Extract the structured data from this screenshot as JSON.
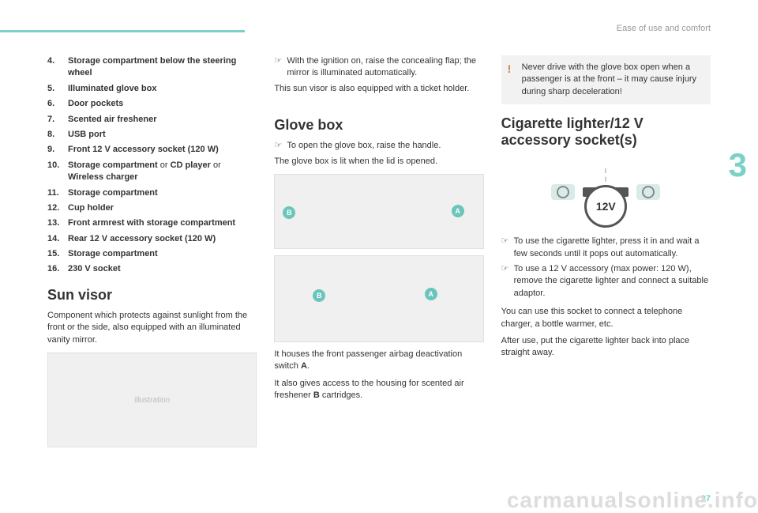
{
  "header": {
    "section": "Ease of use and comfort"
  },
  "chapter_number": "3",
  "page_number": "97",
  "watermark": "carmanualsonline.info",
  "col1": {
    "list": [
      {
        "n": "4.",
        "text": "Storage compartment below the steering wheel"
      },
      {
        "n": "5.",
        "text": "Illuminated glove box"
      },
      {
        "n": "6.",
        "text": "Door pockets"
      },
      {
        "n": "7.",
        "text": "Scented air freshener"
      },
      {
        "n": "8.",
        "text": "USB port"
      },
      {
        "n": "9.",
        "text": "Front 12 V accessory socket (120 W)"
      },
      {
        "n": "10.",
        "text_html": "Storage compartment <span class='plain'>or</span> CD player <span class='plain'>or</span> Wireless charger"
      },
      {
        "n": "11.",
        "text": "Storage compartment"
      },
      {
        "n": "12.",
        "text": "Cup holder"
      },
      {
        "n": "13.",
        "text": "Front armrest with storage compartment"
      },
      {
        "n": "14.",
        "text": "Rear 12 V accessory socket (120 W)"
      },
      {
        "n": "15.",
        "text": "Storage compartment"
      },
      {
        "n": "16.",
        "text": "230 V socket"
      }
    ],
    "h2": "Sun visor",
    "p1": "Component which protects against sunlight from the front or the side, also equipped with an illuminated vanity mirror."
  },
  "col2": {
    "bullet1": "With the ignition on, raise the concealing flap; the mirror is illuminated automatically.",
    "p1": "This sun visor is also equipped with a ticket holder.",
    "h2": "Glove box",
    "bullet2": "To open the glove box, raise the handle.",
    "p2": "The glove box is lit when the lid is opened.",
    "labels": {
      "a": "A",
      "b": "B"
    },
    "p3_html": "It houses the front passenger airbag deactivation switch <b>A</b>.",
    "p4_html": "It also gives access to the housing for scented air freshener <b>B</b> cartridges."
  },
  "col3": {
    "warning": "Never drive with the glove box open when a passenger is at the front – it may cause injury during sharp deceleration!",
    "h2": "Cigarette lighter/12 V accessory socket(s)",
    "socket_label": "12V",
    "bullet1": "To use the cigarette lighter, press it in and wait a few seconds until it pops out automatically.",
    "bullet2": "To use a 12 V accessory (max power: 120 W), remove the cigarette lighter and connect a suitable adaptor.",
    "p1": "You can use this socket to connect a telephone charger, a bottle warmer, etc.",
    "p2": "After use, put the cigarette lighter back into place straight away."
  }
}
